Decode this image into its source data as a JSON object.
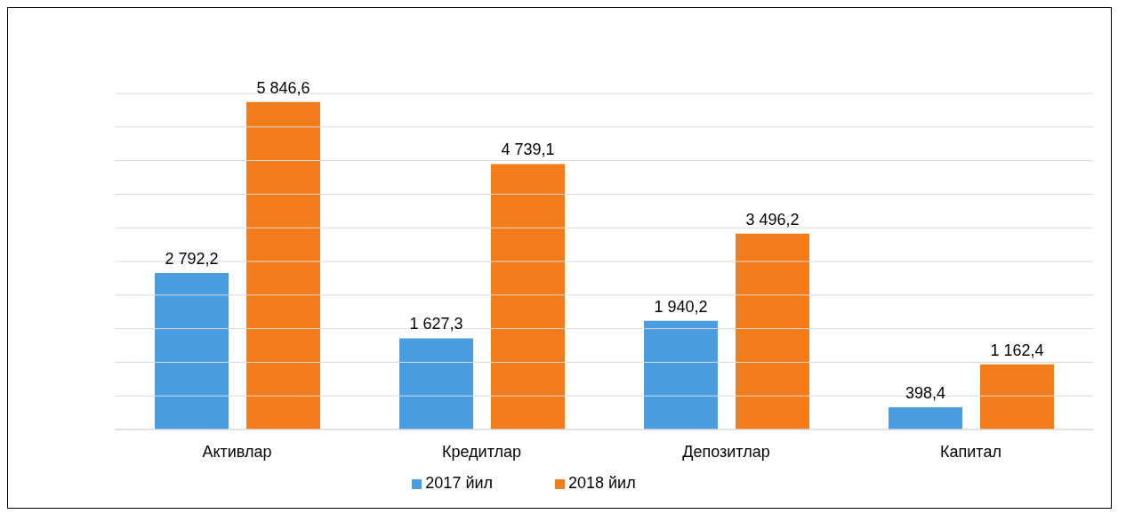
{
  "chart_data": {
    "type": "bar",
    "categories": [
      "Активлар",
      "Кредитлар",
      "Депозитлар",
      "Капитал"
    ],
    "series": [
      {
        "name": "2017 йил",
        "color": "#4a9de0",
        "values": [
          2792.2,
          1627.3,
          1940.2,
          398.4
        ],
        "value_labels": [
          "2 792,2",
          "1 627,3",
          "1 940,2",
          "398,4"
        ]
      },
      {
        "name": "2018 йил",
        "color": "#f57c1a",
        "values": [
          5846.6,
          4739.1,
          3496.2,
          1162.4
        ],
        "value_labels": [
          "5 846,6",
          "4 739,1",
          "3 496,2",
          "1 162,4"
        ]
      }
    ],
    "ylim": [
      0,
      6000
    ],
    "yticks": [
      0,
      {
        "value": 600,
        "label": null
      },
      {
        "value": 1200,
        "label": null
      },
      {
        "value": 1800,
        "label": null
      },
      {
        "value": 2400,
        "label": null
      },
      {
        "value": 3000,
        "label": null
      },
      {
        "value": 3600,
        "label": null
      },
      {
        "value": 4200,
        "label": null
      },
      {
        "value": 4800,
        "label": null
      },
      {
        "value": 5400,
        "label": null
      },
      {
        "value": 6000,
        "label": null
      }
    ],
    "tick_labels": "x",
    "grid": "y",
    "legend": "bottom"
  }
}
